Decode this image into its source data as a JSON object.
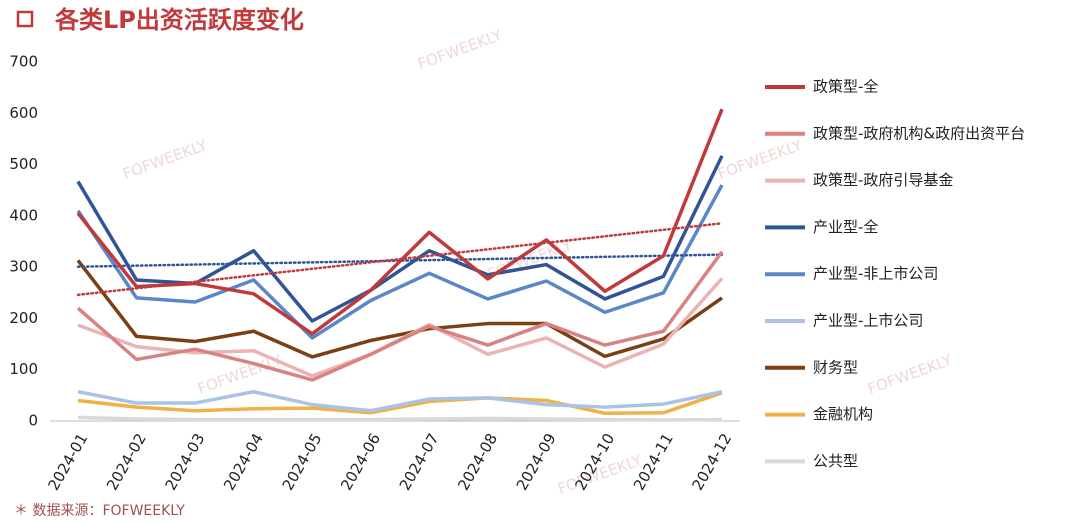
{
  "chart_data": {
    "type": "line",
    "title": "各类LP出资活跃度变化",
    "source": "＊ 数据来源：FOFWEEKLY",
    "watermark": "FOFWEEKLY",
    "categories": [
      "2024-01",
      "2024-02",
      "2024-03",
      "2024-04",
      "2024-05",
      "2024-06",
      "2024-07",
      "2024-08",
      "2024-09",
      "2024-10",
      "2024-11",
      "2024-12"
    ],
    "ylim": [
      0,
      700
    ],
    "yticks": [
      0,
      100,
      200,
      300,
      400,
      500,
      600,
      700
    ],
    "grid": false,
    "legend": "right",
    "series": [
      {
        "name": "政策型-全",
        "color": "#c0393b",
        "trendline": true,
        "values": [
          405,
          262,
          268,
          248,
          170,
          255,
          368,
          277,
          353,
          253,
          322,
          608
        ]
      },
      {
        "name": "政策型-政府机构&政府出资平台",
        "color": "#d98282",
        "values": [
          220,
          120,
          140,
          112,
          80,
          130,
          185,
          148,
          190,
          148,
          175,
          330
        ]
      },
      {
        "name": "政策型-政府引导基金",
        "color": "#ebb3b3",
        "values": [
          187,
          145,
          133,
          137,
          88,
          130,
          188,
          130,
          162,
          105,
          150,
          278
        ]
      },
      {
        "name": "产业型-全",
        "color": "#2f5597",
        "trendline": true,
        "values": [
          467,
          275,
          268,
          332,
          195,
          255,
          332,
          285,
          305,
          238,
          282,
          517
        ]
      },
      {
        "name": "产业型-非上市公司",
        "color": "#5b87c8",
        "values": [
          410,
          240,
          232,
          275,
          162,
          235,
          288,
          238,
          273,
          212,
          250,
          460
        ]
      },
      {
        "name": "产业型-上市公司",
        "color": "#aac2e6",
        "values": [
          57,
          35,
          35,
          57,
          32,
          20,
          43,
          45,
          32,
          27,
          33,
          57
        ]
      },
      {
        "name": "财务型",
        "color": "#7b3f14",
        "values": [
          313,
          165,
          155,
          175,
          125,
          157,
          180,
          190,
          190,
          126,
          160,
          240
        ]
      },
      {
        "name": "金融机构",
        "color": "#f0b04a",
        "values": [
          40,
          27,
          20,
          24,
          25,
          16,
          38,
          45,
          40,
          15,
          16,
          55
        ]
      },
      {
        "name": "公共型",
        "color": "#d6d9df",
        "values": [
          7,
          4,
          3,
          3,
          3,
          3,
          4,
          5,
          4,
          3,
          2,
          3
        ]
      }
    ]
  }
}
